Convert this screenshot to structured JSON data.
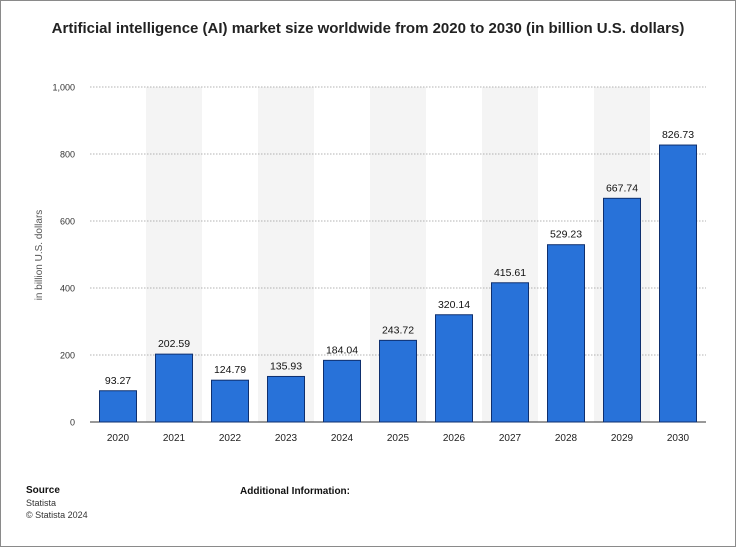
{
  "chart_data": {
    "type": "bar",
    "title": "Artificial intelligence (AI) market size worldwide from 2020 to 2030 (in billion U.S. dollars)",
    "xlabel": "",
    "ylabel": "in billion U.S. dollars",
    "categories": [
      "2020",
      "2021",
      "2022",
      "2023",
      "2024",
      "2025",
      "2026",
      "2027",
      "2028",
      "2029",
      "2030"
    ],
    "values": [
      93.27,
      202.59,
      124.79,
      135.93,
      184.04,
      243.72,
      320.14,
      415.61,
      529.23,
      667.74,
      826.73
    ],
    "value_labels": [
      "93.27",
      "202.59",
      "124.79",
      "135.93",
      "184.04",
      "243.72",
      "320.14",
      "415.61",
      "529.23",
      "667.74",
      "826.73"
    ],
    "ylim": [
      0,
      1000
    ],
    "yticks": [
      0,
      200,
      400,
      600,
      800,
      1000
    ],
    "ytick_labels": [
      "0",
      "200",
      "400",
      "600",
      "800",
      "1,000"
    ],
    "grid": true,
    "bar_color": "#2872d9",
    "bar_edge_color": "#0e2f6e",
    "band_color": "#f4f4f4"
  },
  "footer": {
    "source_label": "Source",
    "source": "Statista",
    "copyright": "© Statista 2024",
    "additional_info_label": "Additional Information:"
  }
}
